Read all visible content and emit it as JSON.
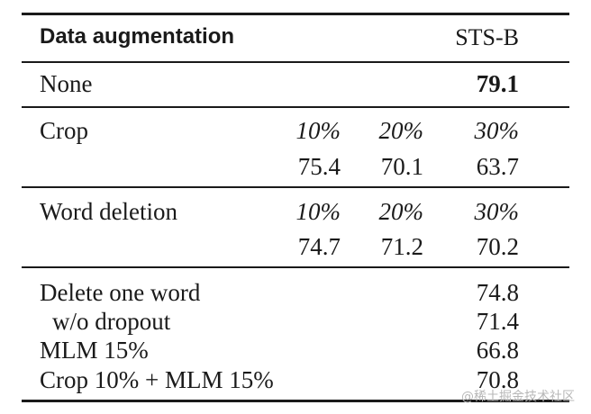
{
  "table": {
    "header": {
      "left": "Data augmentation",
      "right": "STS-B"
    },
    "none_row": {
      "label": "None",
      "value": "79.1"
    },
    "crop": {
      "label": "Crop",
      "rates": [
        "10%",
        "20%",
        "30%"
      ],
      "values": [
        "75.4",
        "70.1",
        "63.7"
      ]
    },
    "word_deletion": {
      "label": "Word deletion",
      "rates": [
        "10%",
        "20%",
        "30%"
      ],
      "values": [
        "74.7",
        "71.2",
        "70.2"
      ]
    },
    "other_rows": [
      {
        "label": "Delete one word",
        "value": "74.8"
      },
      {
        "label": "w/o dropout",
        "value": "71.4"
      },
      {
        "label": "MLM 15%",
        "value": "66.8"
      },
      {
        "label": "Crop 10% + MLM 15%",
        "value": "70.8"
      }
    ]
  },
  "watermark": "@稀土掘金技术社区"
}
